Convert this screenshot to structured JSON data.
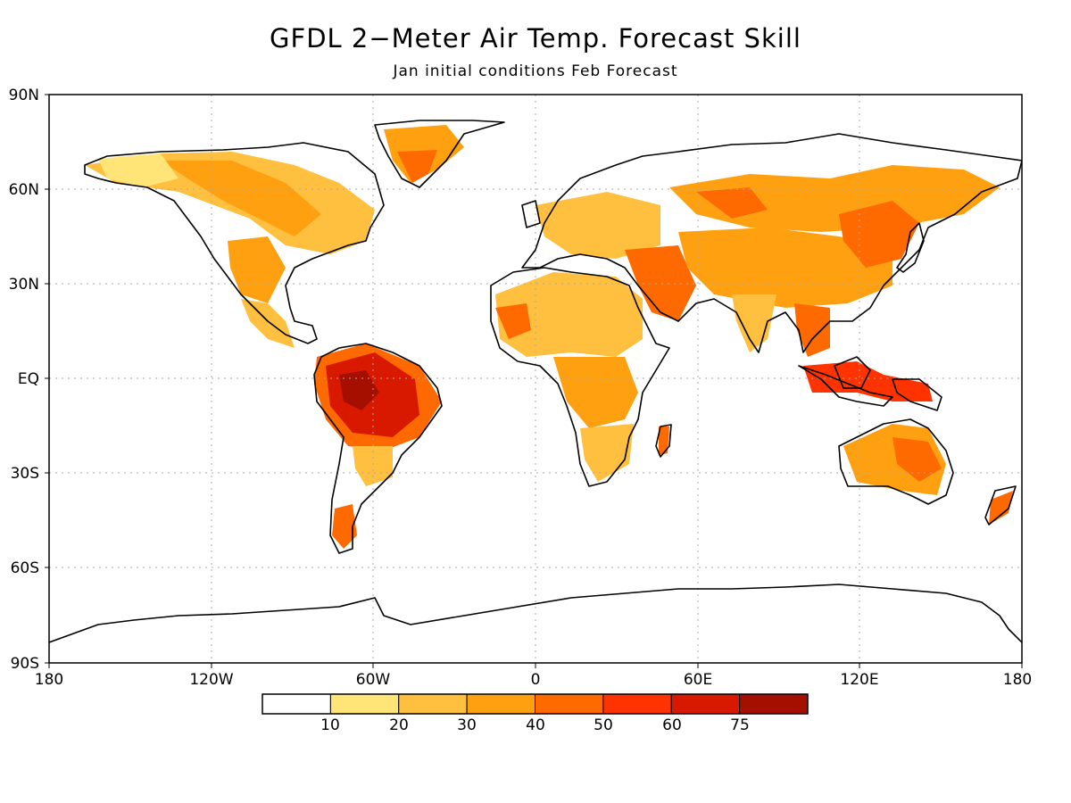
{
  "header": {
    "title": "GFDL 2−Meter Air Temp. Forecast Skill",
    "subtitle": "Jan initial conditions  Feb Forecast"
  },
  "map": {
    "lat_ticks": [
      "90N",
      "60N",
      "30N",
      "EQ",
      "30S",
      "60S",
      "90S"
    ],
    "lon_ticks": [
      "180",
      "120W",
      "60W",
      "0",
      "60E",
      "120E",
      "180"
    ],
    "coastline_color": "#000000",
    "gridlines": "dotted"
  },
  "legend": {
    "labels": [
      "10",
      "20",
      "30",
      "40",
      "50",
      "60",
      "75"
    ],
    "colors": [
      "#ffffff",
      "#ffe577",
      "#ffbf3f",
      "#ffa010",
      "#ff6a00",
      "#ff3300",
      "#d91800",
      "#a50f00"
    ]
  }
}
